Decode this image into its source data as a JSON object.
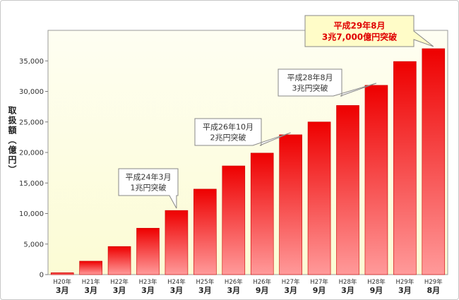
{
  "chart_data": {
    "type": "bar",
    "ylabel": "取扱額（億円）",
    "ylim": [
      0,
      40000
    ],
    "yticks": [
      0,
      5000,
      10000,
      15000,
      20000,
      25000,
      30000,
      35000
    ],
    "ytick_labels": [
      "0",
      "5,000",
      "10,000",
      "15,000",
      "20,000",
      "25,000",
      "30,000",
      "35,000"
    ],
    "categories": [
      {
        "year": "H20年",
        "month": "3月"
      },
      {
        "year": "H21年",
        "month": "3月"
      },
      {
        "year": "H22年",
        "month": "3月"
      },
      {
        "year": "H23年",
        "month": "3月"
      },
      {
        "year": "H24年",
        "month": "3月"
      },
      {
        "year": "H25年",
        "month": "3月"
      },
      {
        "year": "H26年",
        "month": "3月"
      },
      {
        "year": "H26年",
        "month": "9月"
      },
      {
        "year": "H27年",
        "month": "3月"
      },
      {
        "year": "H27年",
        "month": "9月"
      },
      {
        "year": "H28年",
        "month": "3月"
      },
      {
        "year": "H28年",
        "month": "9月"
      },
      {
        "year": "H29年",
        "month": "3月"
      },
      {
        "year": "H29年",
        "month": "8月"
      }
    ],
    "values": [
      300,
      2200,
      4600,
      7600,
      10500,
      14000,
      17800,
      19900,
      22900,
      25000,
      27700,
      31000,
      34900,
      37000
    ],
    "colors": {
      "bar_top": "#ee0000",
      "bar_bottom": "#ff9a9a",
      "plot_bg_top": "#fefef2",
      "plot_bg_bottom": "#fcfcd4",
      "callout_bg": "#ffffff",
      "highlight_bg": "#fffcc8",
      "highlight_text": "#e00000"
    },
    "annotations": [
      {
        "lines": [
          "平成24年3月",
          "1兆円突破"
        ],
        "bar_index": 4,
        "highlight": false
      },
      {
        "lines": [
          "平成26年10月",
          "2兆円突破"
        ],
        "bar_index": 8,
        "highlight": false
      },
      {
        "lines": [
          "平成28年8月",
          "3兆円突破"
        ],
        "bar_index": 11,
        "highlight": false
      },
      {
        "lines": [
          "平成29年8月",
          "3兆7,000億円突破"
        ],
        "bar_index": 13,
        "highlight": true
      }
    ]
  }
}
